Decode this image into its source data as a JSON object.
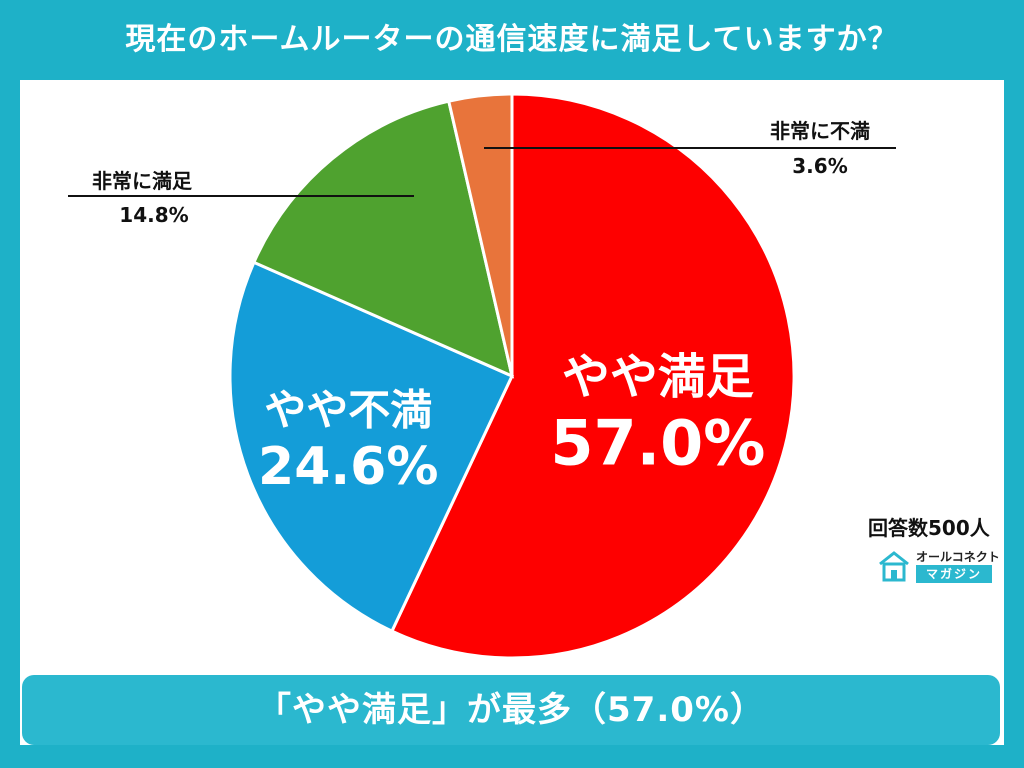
{
  "page": {
    "title": "現在のホームルーターの通信速度に満足していますか？",
    "respondents": "回答数500人",
    "brand_line1": "オールコネクト",
    "brand_line2": "マガジン",
    "summary": "「やや満足」が最多（57.0%）"
  },
  "colors": {
    "frame": "#1eb1c8",
    "summary_bar": "#2bb8cf",
    "やや満足": "#fe0000",
    "やや不満": "#149dd8",
    "非常に満足": "#4fa22f",
    "非常に不満": "#e8743b"
  },
  "chart_data": {
    "type": "pie",
    "start": "12 o'clock, clockwise",
    "slices": [
      {
        "label": "やや満足",
        "value": 57.0,
        "value_label": "57.0%",
        "color": "#fe0000",
        "label_style": "inside"
      },
      {
        "label": "やや不満",
        "value": 24.6,
        "value_label": "24.6%",
        "color": "#149dd8",
        "label_style": "inside"
      },
      {
        "label": "非常に満足",
        "value": 14.8,
        "value_label": "14.8%",
        "color": "#4fa22f",
        "label_style": "callout-left"
      },
      {
        "label": "非常に不満",
        "value": 3.6,
        "value_label": "3.6%",
        "color": "#e8743b",
        "label_style": "callout-right"
      }
    ]
  }
}
